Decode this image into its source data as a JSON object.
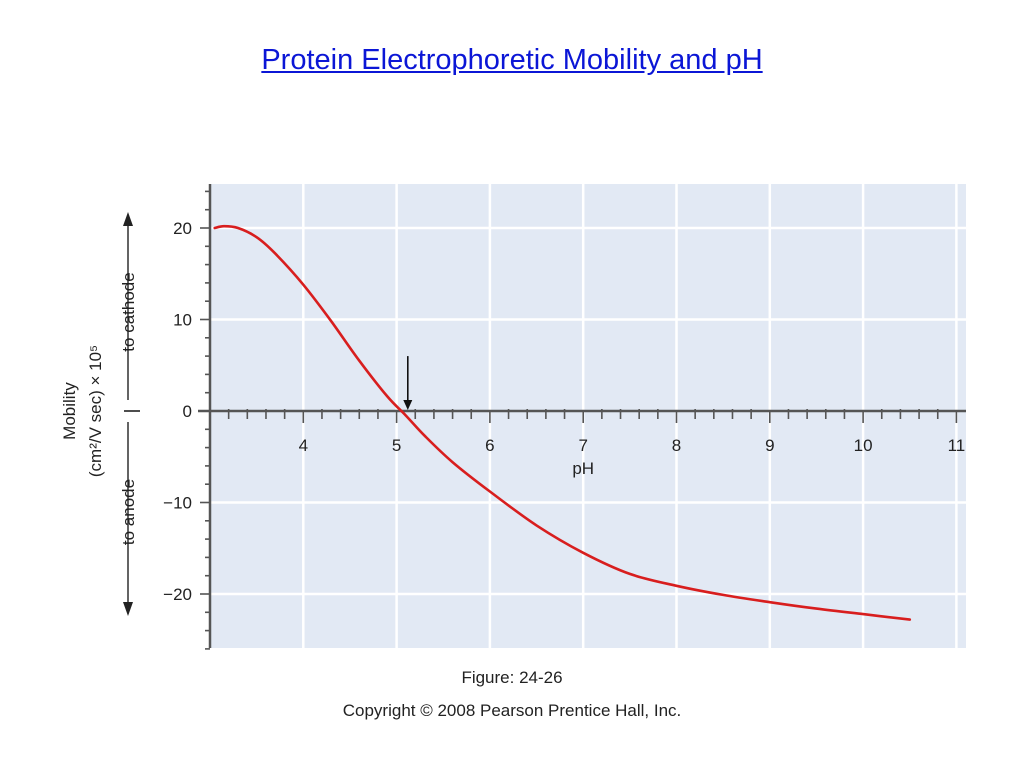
{
  "slide": {
    "title": "Protein Electrophoretic Mobility and pH",
    "figure_caption": "Figure: 24-26",
    "copyright": "Copyright © 2008 Pearson Prentice Hall, Inc."
  },
  "chart_data": {
    "type": "line",
    "title": "",
    "xlabel": "pH",
    "ylabel_lines": [
      "Mobility",
      "(cm²/V sec) × 10⁵"
    ],
    "y_direction_labels": {
      "positive": "to cathode",
      "negative": "to anode"
    },
    "xlim": [
      3,
      11
    ],
    "ylim": [
      -26,
      25
    ],
    "x_ticks": [
      4,
      5,
      6,
      7,
      8,
      9,
      10,
      11
    ],
    "y_ticks": [
      20,
      10,
      0,
      -10,
      -20
    ],
    "y_tick_labels": [
      "20",
      "10",
      "0",
      "−10",
      "−20"
    ],
    "grid": true,
    "colors": {
      "plot_bg": "#e2e9f4",
      "grid": "#ffffff",
      "curve": "#d81e1e",
      "axis": "#555555"
    },
    "series": [
      {
        "x": [
          3.05,
          3.15,
          3.3,
          3.5,
          3.7,
          4.0,
          4.3,
          4.6,
          4.9,
          5.1,
          5.3,
          5.6,
          6.0,
          6.5,
          7.0,
          7.5,
          8.0,
          8.5,
          9.0,
          9.5,
          10.0,
          10.5
        ],
        "y": [
          20,
          20.2,
          20,
          19,
          17.2,
          13.8,
          9.8,
          5.5,
          1.6,
          -0.5,
          -2.7,
          -5.6,
          -8.8,
          -12.5,
          -15.5,
          -17.8,
          -19.1,
          -20.1,
          -20.9,
          -21.6,
          -22.2,
          -22.8
        ]
      }
    ],
    "annotations": [
      {
        "type": "arrow",
        "x": 5.12,
        "y_from": 6,
        "y_to": 0
      }
    ]
  }
}
